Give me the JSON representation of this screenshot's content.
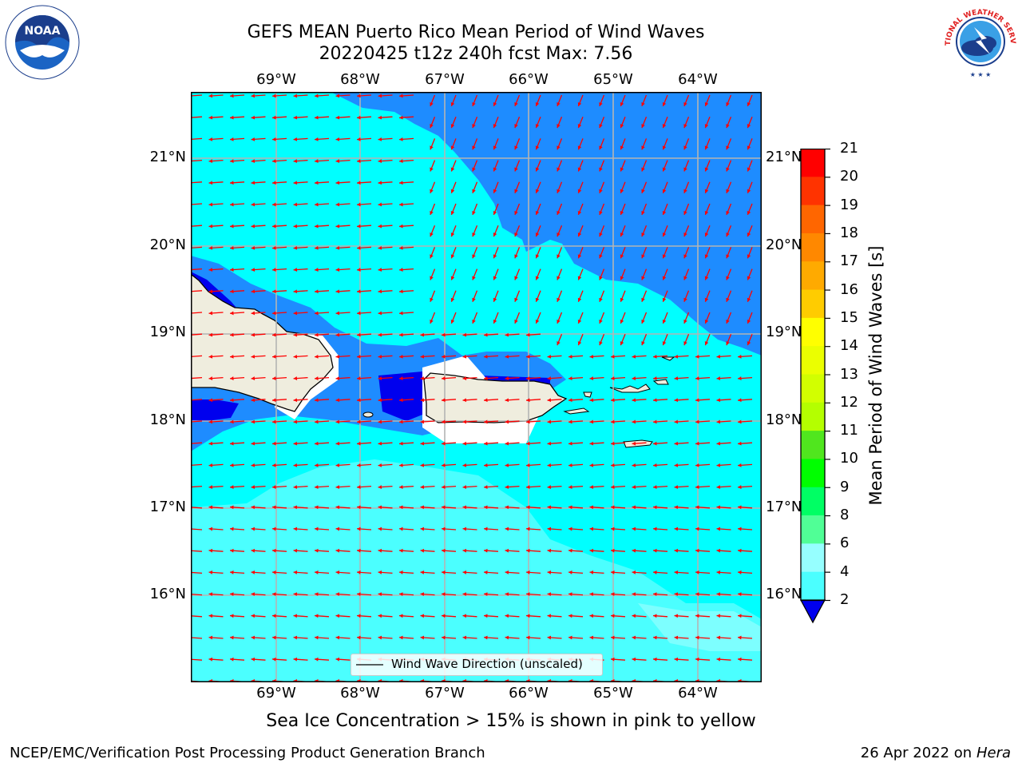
{
  "title": {
    "line1": "GEFS MEAN Puerto Rico Mean Period of Wind Waves",
    "line2": "20220425 t12z 240h fcst   Max: 7.56"
  },
  "logos": {
    "noaa": {
      "text": "NOAA",
      "icon": "noaa-logo"
    },
    "nws": {
      "text": "NATIONAL WEATHER SERVICE",
      "icon": "nws-logo"
    }
  },
  "map": {
    "lon_labels": [
      "69°W",
      "68°W",
      "67°W",
      "66°W",
      "65°W",
      "64°W"
    ],
    "lat_labels": [
      "21°N",
      "20°N",
      "19°N",
      "18°N",
      "17°N",
      "16°N"
    ],
    "legend_label": "Wind Wave Direction (unscaled)",
    "colors": {
      "land": "#efedde",
      "level_2_4": "#1e8cff",
      "level_4_6": "#00ffff",
      "level_6_8": "#4bffff",
      "level_8_9": "#96ffff",
      "below_2": "#0000ee",
      "arrows": "#ff0000",
      "grid": "#b4b4b4"
    }
  },
  "colorbar": {
    "label": "Mean Period of Wind Waves [s]",
    "ticks": [
      "21",
      "20",
      "19",
      "18",
      "17",
      "16",
      "15",
      "14",
      "13",
      "12",
      "11",
      "10",
      "9",
      "8",
      "6",
      "4",
      "2"
    ],
    "colors": [
      "#ff0000",
      "#ff3300",
      "#ff6600",
      "#ff8800",
      "#ffaa00",
      "#ffcc00",
      "#ffff00",
      "#ebff00",
      "#d2ff00",
      "#b4ff00",
      "#50e61e",
      "#00ff00",
      "#00ff64",
      "#50ff96",
      "#96ffff",
      "#4bffff",
      "#00ffff",
      "#1e8cff"
    ],
    "extend_color": "#0000ee"
  },
  "subtitle": "Sea Ice Concentration > 15% is shown in pink to yellow",
  "footer": {
    "left": "NCEP/EMC/Verification Post Processing Product Generation Branch",
    "right_date": "26 Apr 2022 on ",
    "right_machine": "Hera"
  }
}
